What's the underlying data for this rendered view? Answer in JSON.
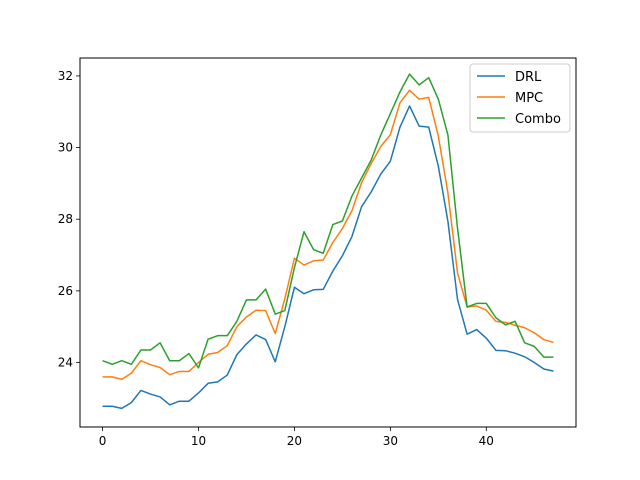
{
  "chart_data": {
    "type": "line",
    "title": "",
    "xlabel": "",
    "ylabel": "",
    "xlim": [
      -2.35,
      49.35
    ],
    "ylim": [
      22.2,
      32.5
    ],
    "xticks": [
      0,
      10,
      20,
      30,
      40
    ],
    "yticks": [
      24,
      26,
      28,
      30,
      32
    ],
    "xtick_labels": [
      "0",
      "10",
      "20",
      "30",
      "40"
    ],
    "ytick_labels": [
      "24",
      "26",
      "28",
      "30",
      "32"
    ],
    "grid": false,
    "legend_position": "top-right",
    "x": [
      0,
      1,
      2,
      3,
      4,
      5,
      6,
      7,
      8,
      9,
      10,
      11,
      12,
      13,
      14,
      15,
      16,
      17,
      18,
      19,
      20,
      21,
      22,
      23,
      24,
      25,
      26,
      27,
      28,
      29,
      30,
      31,
      32,
      33,
      34,
      35,
      36,
      37,
      38,
      39,
      40,
      41,
      42,
      43,
      44,
      45,
      46,
      47
    ],
    "series": [
      {
        "name": "DRL",
        "color": "#1f77b4",
        "values": [
          22.78,
          22.78,
          22.72,
          22.88,
          23.22,
          23.12,
          23.04,
          22.82,
          22.92,
          22.92,
          23.15,
          23.42,
          23.46,
          23.65,
          24.22,
          24.52,
          24.77,
          24.64,
          24.02,
          25.0,
          26.1,
          25.92,
          26.03,
          26.04,
          26.55,
          26.98,
          27.52,
          28.35,
          28.76,
          29.26,
          29.62,
          30.57,
          31.16,
          30.6,
          30.57,
          29.48,
          27.94,
          25.76,
          24.79,
          24.92,
          24.68,
          24.34,
          24.33,
          24.26,
          24.16,
          24.0,
          23.82,
          23.76
        ]
      },
      {
        "name": "MPC",
        "color": "#ff7f0e",
        "values": [
          23.6,
          23.6,
          23.53,
          23.7,
          24.05,
          23.94,
          23.86,
          23.66,
          23.75,
          23.75,
          24.0,
          24.23,
          24.28,
          24.47,
          25.0,
          25.27,
          25.46,
          25.45,
          24.81,
          25.78,
          26.91,
          26.72,
          26.84,
          26.86,
          27.35,
          27.74,
          28.24,
          29.02,
          29.55,
          30.03,
          30.36,
          31.25,
          31.6,
          31.35,
          31.4,
          30.32,
          28.73,
          26.5,
          25.55,
          25.58,
          25.46,
          25.15,
          25.12,
          25.04,
          24.97,
          24.83,
          24.64,
          24.56
        ]
      },
      {
        "name": "Combo",
        "color": "#2ca02c",
        "values": [
          24.05,
          23.95,
          24.05,
          23.95,
          24.35,
          24.35,
          24.55,
          24.05,
          24.05,
          24.25,
          23.85,
          24.65,
          24.75,
          24.75,
          25.15,
          25.75,
          25.75,
          26.05,
          25.35,
          25.45,
          26.65,
          27.65,
          27.15,
          27.05,
          27.85,
          27.95,
          28.65,
          29.15,
          29.65,
          30.35,
          30.95,
          31.55,
          32.05,
          31.75,
          31.95,
          31.35,
          30.35,
          27.75,
          25.55,
          25.65,
          25.65,
          25.25,
          25.05,
          25.15,
          24.55,
          24.45,
          24.15,
          24.15
        ]
      }
    ]
  }
}
